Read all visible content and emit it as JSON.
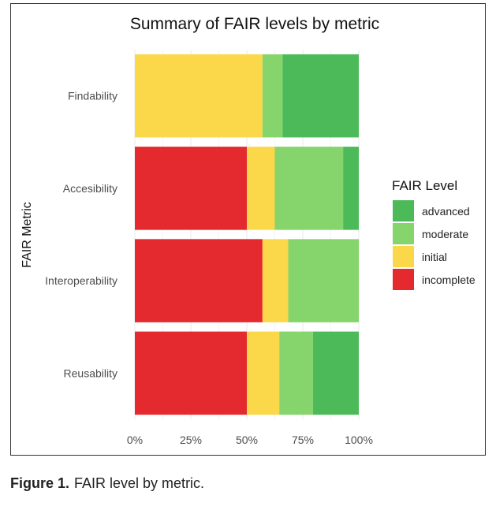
{
  "chart_data": {
    "type": "bar",
    "orientation": "horizontal",
    "stacked": true,
    "title": "Summary of FAIR levels by metric",
    "xlabel": "",
    "ylabel": "FAIR Metric",
    "categories": [
      "Findability",
      "Accesibility",
      "Interoperability",
      "Reusability"
    ],
    "xlim": [
      0,
      1
    ],
    "xticks": [
      {
        "value": 0,
        "label": "0%"
      },
      {
        "value": 0.25,
        "label": "25%"
      },
      {
        "value": 0.5,
        "label": "50%"
      },
      {
        "value": 0.75,
        "label": "75%"
      },
      {
        "value": 1,
        "label": "100%"
      }
    ],
    "grid": true,
    "legend_title": "FAIR Level",
    "legend_position": "right",
    "series": [
      {
        "name": "incomplete",
        "color": "#e4292f",
        "values": [
          0,
          0.5,
          0.57,
          0.5
        ]
      },
      {
        "name": "initial",
        "color": "#fbd74a",
        "values": [
          0.57,
          0.125,
          0.115,
          0.145
        ]
      },
      {
        "name": "moderate",
        "color": "#86d46c",
        "values": [
          0.09,
          0.305,
          0.315,
          0.15
        ]
      },
      {
        "name": "advanced",
        "color": "#4dba5a",
        "values": [
          0.34,
          0.07,
          0,
          0.205
        ]
      }
    ],
    "legend_order": [
      "advanced",
      "moderate",
      "initial",
      "incomplete"
    ]
  },
  "caption": {
    "label": "Figure 1.",
    "text": "FAIR level by metric."
  }
}
